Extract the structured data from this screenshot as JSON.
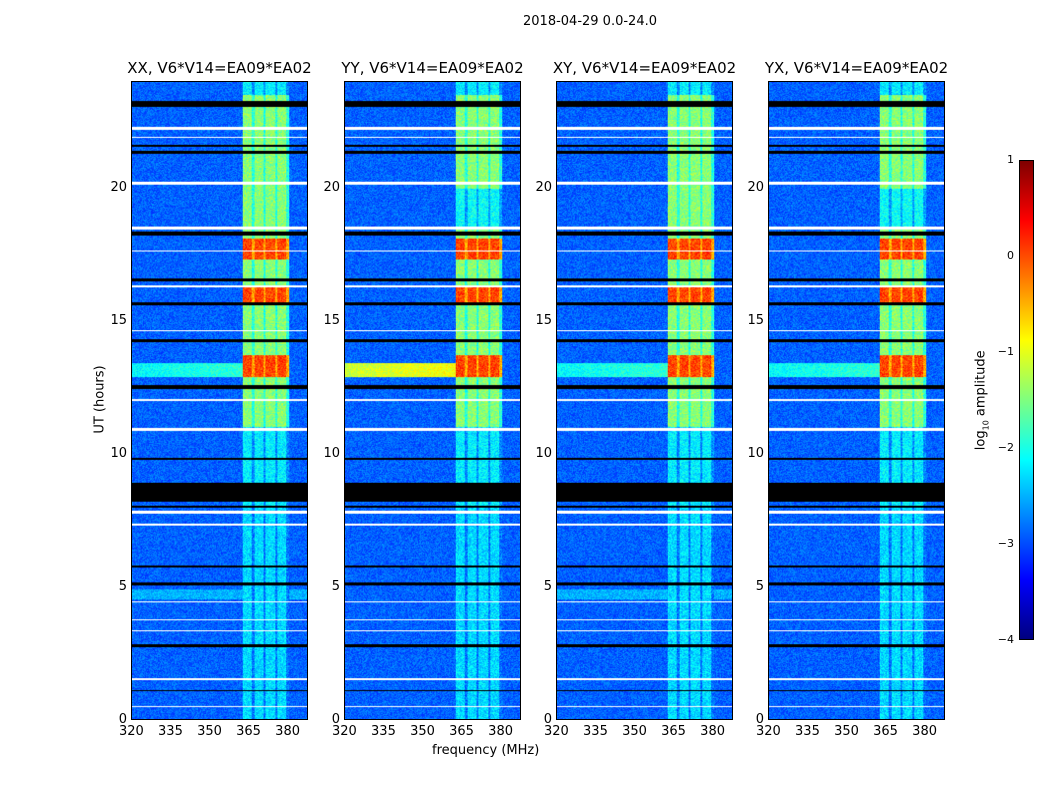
{
  "suptitle": "2018-04-29 0.0-24.0",
  "chart_data": {
    "type": "heatmap",
    "xlabel": "frequency (MHz)",
    "ylabel": "UT (hours)",
    "xlim": [
      320,
      388
    ],
    "ylim": [
      0,
      24
    ],
    "xticks": [
      "320",
      "335",
      "350",
      "365",
      "380"
    ],
    "xtick_values": [
      320,
      335,
      350,
      365,
      380
    ],
    "yticks": [
      "0",
      "5",
      "10",
      "15",
      "20"
    ],
    "ytick_values": [
      0,
      5,
      10,
      15,
      20
    ],
    "panels": [
      {
        "title": "XX, V6*V14=EA09*EA02"
      },
      {
        "title": "YY, V6*V14=EA09*EA02"
      },
      {
        "title": "XY, V6*V14=EA09*EA02"
      },
      {
        "title": "YX, V6*V14=EA09*EA02"
      }
    ],
    "rfi_band_mhz": [
      363,
      381
    ],
    "flagged_black_hours": [
      [
        23.05,
        23.3
      ],
      [
        21.55,
        21.65
      ],
      [
        21.3,
        21.4
      ],
      [
        18.2,
        18.35
      ],
      [
        16.5,
        16.6
      ],
      [
        15.6,
        15.7
      ],
      [
        14.2,
        14.3
      ],
      [
        12.45,
        12.6
      ],
      [
        9.75,
        9.85
      ],
      [
        8.2,
        8.9
      ],
      [
        7.95,
        8.05
      ],
      [
        5.7,
        5.8
      ],
      [
        5.05,
        5.15
      ],
      [
        2.7,
        2.8
      ],
      [
        1.05,
        1.1
      ]
    ],
    "flagged_white_hours": [
      [
        22.2,
        22.3
      ],
      [
        21.9,
        21.95
      ],
      [
        20.15,
        20.25
      ],
      [
        18.45,
        18.55
      ],
      [
        17.6,
        17.65
      ],
      [
        16.25,
        16.35
      ],
      [
        14.6,
        14.65
      ],
      [
        12.0,
        12.05
      ],
      [
        10.85,
        10.95
      ],
      [
        7.75,
        7.85
      ],
      [
        7.3,
        7.35
      ],
      [
        4.4,
        4.45
      ],
      [
        3.7,
        3.75
      ],
      [
        3.3,
        3.35
      ],
      [
        1.45,
        1.55
      ],
      [
        0.45,
        0.5
      ]
    ],
    "colorbar": {
      "label": "log10 amplitude",
      "label_main": "log",
      "label_sub": "10",
      "label_rest": " amplitude",
      "ticks": [
        "1",
        "0",
        "−1",
        "−2",
        "−3",
        "−4"
      ],
      "tick_values": [
        1,
        0,
        -1,
        -2,
        -3,
        -4
      ],
      "range": [
        -4,
        1
      ],
      "colormap": "jet"
    }
  }
}
